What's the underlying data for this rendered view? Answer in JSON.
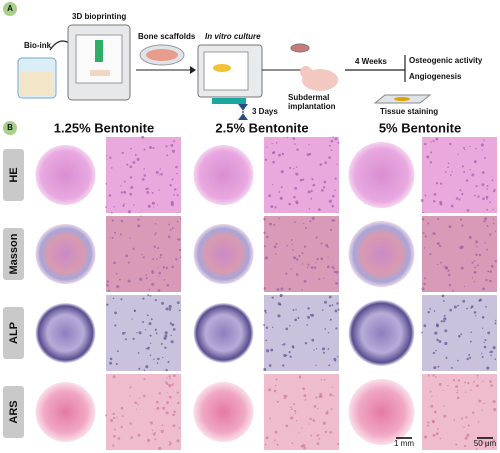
{
  "panel_a": {
    "label": "A",
    "bio_ink": "Bio-ink",
    "bioprinting": "3D bioprinting",
    "scaffolds": "Bone scaffolds",
    "culture": "In vitro culture",
    "days": "3 Days",
    "implantation": [
      "Subdermal",
      "implantation"
    ],
    "weeks": "4 Weeks",
    "outcomes": [
      "Osteogenic activity",
      "Angiogenesis"
    ],
    "staining": "Tissue staining"
  },
  "panel_b": {
    "label": "B",
    "columns": [
      "1.25% Bentonite",
      "2.5% Bentonite",
      "5% Bentonite"
    ],
    "rows": [
      "HE",
      "Masson",
      "ALP",
      "ARS"
    ],
    "scale_bars": [
      "1 mm",
      "50 μm"
    ]
  }
}
